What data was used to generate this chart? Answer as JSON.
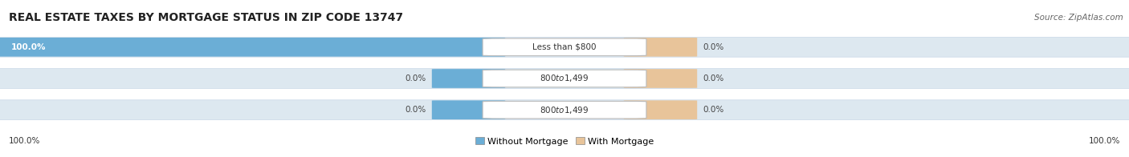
{
  "title": "REAL ESTATE TAXES BY MORTGAGE STATUS IN ZIP CODE 13747",
  "source": "Source: ZipAtlas.com",
  "rows": [
    {
      "label": "Less than $800",
      "without_mortgage": 100.0,
      "with_mortgage": 0.0
    },
    {
      "label": "$800 to $1,499",
      "without_mortgage": 0.0,
      "with_mortgage": 0.0
    },
    {
      "label": "$800 to $1,499",
      "without_mortgage": 0.0,
      "with_mortgage": 0.0
    }
  ],
  "color_without": "#6baed6",
  "color_with": "#e8c49a",
  "bar_bg_color": "#dce6f0",
  "row_bg_color": "#f2f2f2",
  "row_sep_color": "#cccccc",
  "title_fontsize": 10,
  "source_fontsize": 7.5,
  "bar_label_fontsize": 7.5,
  "legend_fontsize": 8,
  "bottom_left_label": "100.0%",
  "bottom_right_label": "100.0%",
  "fig_width": 14.06,
  "fig_height": 1.96,
  "dpi": 100
}
